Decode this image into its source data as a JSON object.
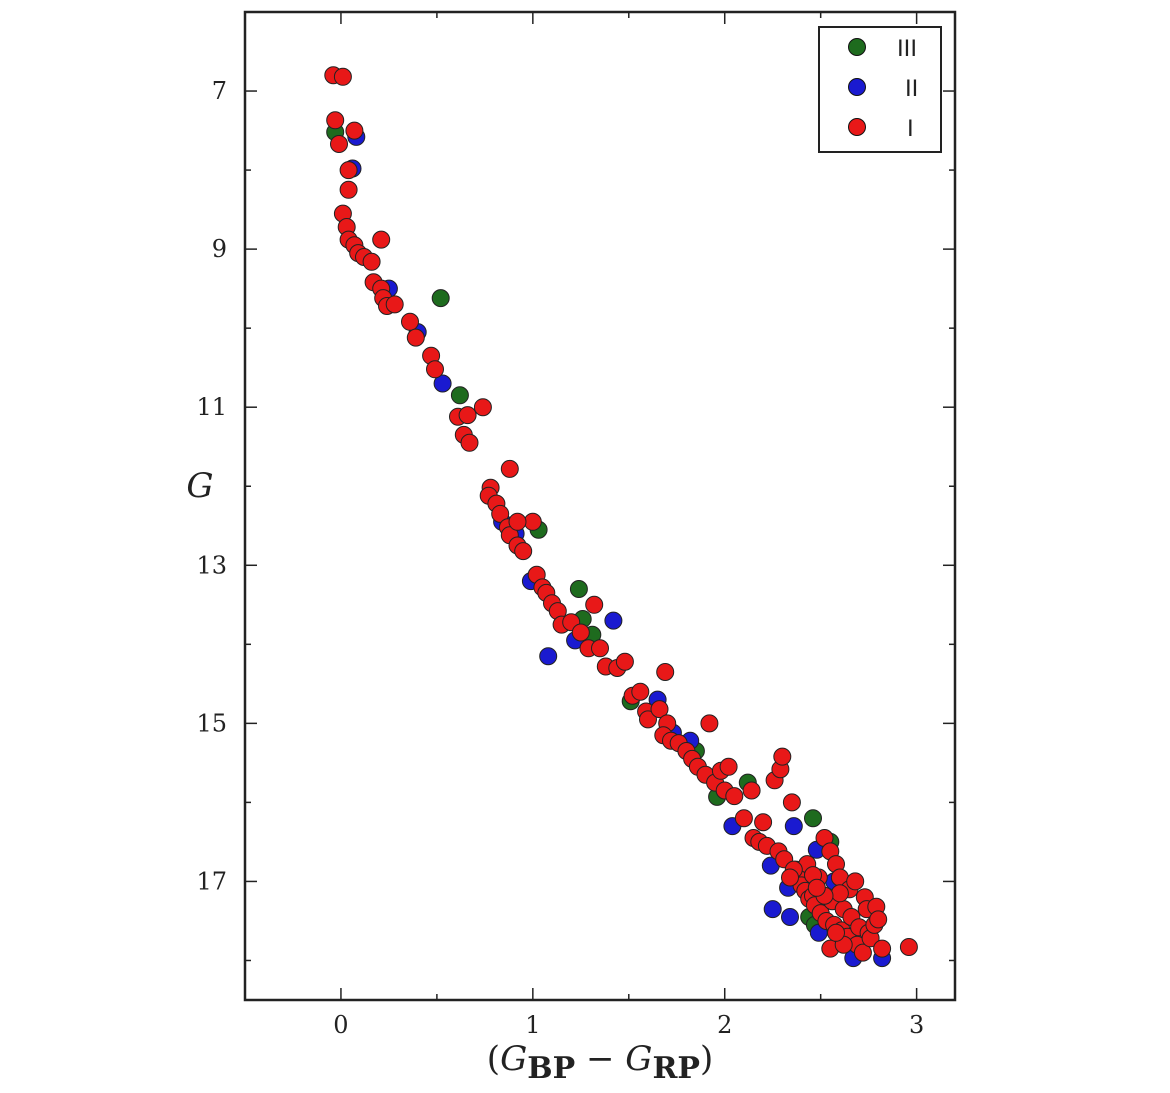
{
  "chart_data": {
    "type": "scatter",
    "title": "",
    "xlabel": {
      "open": "(",
      "g1": "G",
      "sub1": "BP",
      "minus": " − ",
      "g2": "G",
      "sub2": "RP",
      "close": ")"
    },
    "ylabel": "G",
    "xlim": [
      -0.5,
      3.2
    ],
    "ylim": [
      6.0,
      18.5
    ],
    "y_inverted": true,
    "x_ticks": [
      0,
      1,
      2,
      3
    ],
    "y_ticks": [
      7,
      9,
      11,
      13,
      15,
      17
    ],
    "legend_position": "top-right",
    "grid": false,
    "series": [
      {
        "name": "III",
        "color": "#1e6b1e",
        "points": [
          [
            -0.03,
            7.52
          ],
          [
            0.52,
            9.62
          ],
          [
            0.62,
            10.85
          ],
          [
            1.03,
            12.55
          ],
          [
            1.24,
            13.3
          ],
          [
            1.26,
            13.68
          ],
          [
            1.31,
            13.88
          ],
          [
            1.51,
            14.72
          ],
          [
            2.12,
            15.75
          ],
          [
            1.96,
            15.93
          ],
          [
            2.46,
            16.2
          ],
          [
            2.44,
            17.45
          ],
          [
            2.47,
            17.55
          ],
          [
            1.85,
            15.35
          ],
          [
            2.55,
            16.5
          ]
        ]
      },
      {
        "name": "II",
        "color": "#1a1ad0",
        "points": [
          [
            0.08,
            7.58
          ],
          [
            0.06,
            7.98
          ],
          [
            0.25,
            9.5
          ],
          [
            0.4,
            10.05
          ],
          [
            0.53,
            10.7
          ],
          [
            0.84,
            12.45
          ],
          [
            0.91,
            12.6
          ],
          [
            0.99,
            13.2
          ],
          [
            1.08,
            14.15
          ],
          [
            1.22,
            13.95
          ],
          [
            1.42,
            13.7
          ],
          [
            1.65,
            14.7
          ],
          [
            1.82,
            15.22
          ],
          [
            1.73,
            15.12
          ],
          [
            2.04,
            16.3
          ],
          [
            2.24,
            16.8
          ],
          [
            2.25,
            17.35
          ],
          [
            2.34,
            17.45
          ],
          [
            2.36,
            16.3
          ],
          [
            2.33,
            17.08
          ],
          [
            2.48,
            16.6
          ],
          [
            2.49,
            17.65
          ],
          [
            2.67,
            17.97
          ],
          [
            2.82,
            17.97
          ],
          [
            2.57,
            17.0
          ]
        ]
      },
      {
        "name": "I",
        "color": "#e81818",
        "points": [
          [
            -0.04,
            6.8
          ],
          [
            0.01,
            6.82
          ],
          [
            -0.03,
            7.37
          ],
          [
            -0.01,
            7.67
          ],
          [
            0.07,
            7.5
          ],
          [
            0.04,
            8.0
          ],
          [
            0.04,
            8.25
          ],
          [
            0.01,
            8.55
          ],
          [
            0.03,
            8.72
          ],
          [
            0.04,
            8.88
          ],
          [
            0.07,
            8.95
          ],
          [
            0.21,
            8.88
          ],
          [
            0.09,
            9.05
          ],
          [
            0.12,
            9.1
          ],
          [
            0.16,
            9.16
          ],
          [
            0.17,
            9.42
          ],
          [
            0.21,
            9.5
          ],
          [
            0.22,
            9.62
          ],
          [
            0.24,
            9.72
          ],
          [
            0.28,
            9.7
          ],
          [
            0.36,
            9.92
          ],
          [
            0.39,
            10.12
          ],
          [
            0.47,
            10.35
          ],
          [
            0.49,
            10.52
          ],
          [
            0.61,
            11.12
          ],
          [
            0.66,
            11.1
          ],
          [
            0.74,
            11.0
          ],
          [
            0.64,
            11.35
          ],
          [
            0.67,
            11.45
          ],
          [
            0.88,
            11.78
          ],
          [
            0.78,
            12.02
          ],
          [
            0.77,
            12.12
          ],
          [
            0.81,
            12.22
          ],
          [
            0.83,
            12.35
          ],
          [
            0.87,
            12.52
          ],
          [
            0.88,
            12.62
          ],
          [
            0.92,
            12.75
          ],
          [
            0.95,
            12.82
          ],
          [
            1.0,
            12.45
          ],
          [
            0.92,
            12.45
          ],
          [
            1.02,
            13.12
          ],
          [
            1.05,
            13.28
          ],
          [
            1.07,
            13.35
          ],
          [
            1.1,
            13.48
          ],
          [
            1.13,
            13.58
          ],
          [
            1.32,
            13.5
          ],
          [
            1.15,
            13.75
          ],
          [
            1.2,
            13.72
          ],
          [
            1.25,
            13.85
          ],
          [
            1.29,
            14.05
          ],
          [
            1.35,
            14.05
          ],
          [
            1.38,
            14.28
          ],
          [
            1.44,
            14.3
          ],
          [
            1.48,
            14.22
          ],
          [
            1.69,
            14.35
          ],
          [
            1.52,
            14.65
          ],
          [
            1.56,
            14.6
          ],
          [
            1.59,
            14.85
          ],
          [
            1.6,
            14.95
          ],
          [
            1.66,
            14.82
          ],
          [
            1.7,
            15.0
          ],
          [
            1.68,
            15.15
          ],
          [
            1.72,
            15.22
          ],
          [
            1.76,
            15.25
          ],
          [
            1.8,
            15.35
          ],
          [
            1.83,
            15.45
          ],
          [
            1.86,
            15.55
          ],
          [
            1.9,
            15.65
          ],
          [
            1.92,
            15.0
          ],
          [
            1.95,
            15.75
          ],
          [
            1.98,
            15.6
          ],
          [
            2.0,
            15.85
          ],
          [
            2.02,
            15.55
          ],
          [
            2.05,
            15.92
          ],
          [
            2.1,
            16.2
          ],
          [
            2.14,
            15.85
          ],
          [
            2.15,
            16.45
          ],
          [
            2.18,
            16.5
          ],
          [
            2.2,
            16.25
          ],
          [
            2.22,
            16.55
          ],
          [
            2.26,
            15.72
          ],
          [
            2.29,
            15.58
          ],
          [
            2.3,
            15.42
          ],
          [
            2.28,
            16.62
          ],
          [
            2.31,
            16.72
          ],
          [
            2.35,
            16.0
          ],
          [
            2.37,
            16.85
          ],
          [
            2.38,
            16.95
          ],
          [
            2.4,
            17.05
          ],
          [
            2.42,
            17.12
          ],
          [
            2.44,
            17.22
          ],
          [
            2.46,
            17.18
          ],
          [
            2.47,
            17.3
          ],
          [
            2.49,
            16.95
          ],
          [
            2.52,
            16.45
          ],
          [
            2.5,
            17.4
          ],
          [
            2.53,
            17.5
          ],
          [
            2.55,
            16.62
          ],
          [
            2.56,
            17.25
          ],
          [
            2.58,
            16.78
          ],
          [
            2.57,
            17.55
          ],
          [
            2.6,
            16.95
          ],
          [
            2.61,
            17.62
          ],
          [
            2.62,
            17.35
          ],
          [
            2.64,
            17.7
          ],
          [
            2.65,
            17.1
          ],
          [
            2.66,
            17.45
          ],
          [
            2.68,
            17.0
          ],
          [
            2.69,
            17.8
          ],
          [
            2.7,
            17.58
          ],
          [
            2.72,
            17.9
          ],
          [
            2.73,
            17.2
          ],
          [
            2.74,
            17.35
          ],
          [
            2.75,
            17.65
          ],
          [
            2.76,
            17.72
          ],
          [
            2.78,
            17.55
          ],
          [
            2.79,
            17.32
          ],
          [
            2.8,
            17.48
          ],
          [
            2.82,
            17.85
          ],
          [
            2.55,
            17.85
          ],
          [
            2.96,
            17.83
          ],
          [
            2.43,
            16.78
          ],
          [
            2.46,
            16.92
          ],
          [
            2.36,
            16.85
          ],
          [
            2.34,
            16.95
          ],
          [
            2.6,
            17.15
          ],
          [
            2.62,
            17.8
          ],
          [
            2.58,
            17.65
          ],
          [
            2.52,
            17.18
          ],
          [
            2.48,
            17.08
          ]
        ]
      }
    ]
  }
}
